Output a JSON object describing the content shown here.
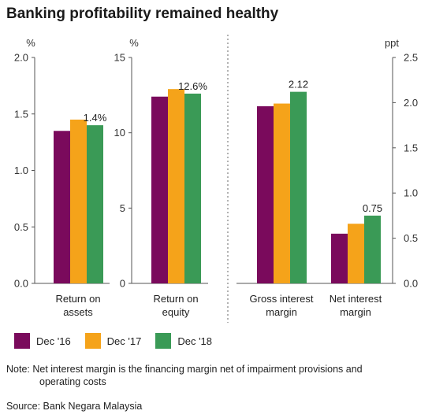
{
  "title": "Banking profitability remained healthy",
  "note_line1": "Note: Net interest margin is the financing margin net of impairment provisions and",
  "note_line2": "operating costs",
  "source": "Source: Bank Negara Malaysia",
  "colors": {
    "Dec '16": "#7a0a5c",
    "Dec '17": "#f5a31a",
    "Dec '18": "#3a9a56",
    "axis": "#555555",
    "divider": "#999999"
  },
  "legend": [
    "Dec '16",
    "Dec '17",
    "Dec '18"
  ],
  "chart_data": [
    {
      "type": "bar",
      "title": "",
      "ylabel": "%",
      "ylim": [
        0,
        2.0
      ],
      "yticks": [
        "0.0",
        "0.5",
        "1.0",
        "1.5",
        "2.0"
      ],
      "categories": [
        "Return on assets"
      ],
      "series": [
        {
          "name": "Dec '16",
          "values": [
            1.35
          ]
        },
        {
          "name": "Dec '17",
          "values": [
            1.45
          ]
        },
        {
          "name": "Dec '18",
          "values": [
            1.4
          ]
        }
      ],
      "data_labels": [
        "1.4%"
      ]
    },
    {
      "type": "bar",
      "title": "",
      "ylabel": "%",
      "ylim": [
        0,
        15
      ],
      "yticks": [
        "0",
        "5",
        "10",
        "15"
      ],
      "categories": [
        "Return on equity"
      ],
      "series": [
        {
          "name": "Dec '16",
          "values": [
            12.4
          ]
        },
        {
          "name": "Dec '17",
          "values": [
            12.9
          ]
        },
        {
          "name": "Dec '18",
          "values": [
            12.6
          ]
        }
      ],
      "data_labels": [
        "12.6%"
      ]
    },
    {
      "type": "bar",
      "title": "",
      "ylabel": "ppt",
      "ylim": [
        0,
        2.5
      ],
      "yticks": [
        "0.0",
        "0.5",
        "1.0",
        "1.5",
        "2.0",
        "2.5"
      ],
      "categories": [
        "Gross interest margin",
        "Net interest margin"
      ],
      "series": [
        {
          "name": "Dec '16",
          "values": [
            1.96,
            0.55
          ]
        },
        {
          "name": "Dec '17",
          "values": [
            1.99,
            0.66
          ]
        },
        {
          "name": "Dec '18",
          "values": [
            2.12,
            0.75
          ]
        }
      ],
      "data_labels": [
        "2.12",
        "0.75"
      ]
    }
  ]
}
